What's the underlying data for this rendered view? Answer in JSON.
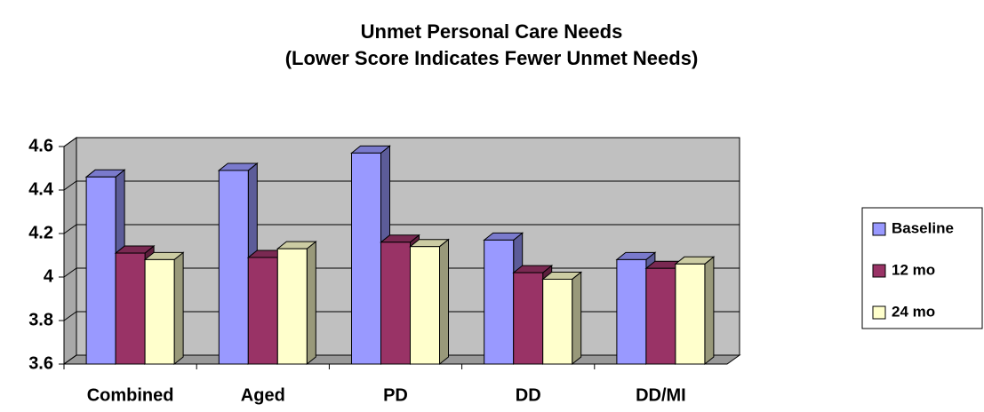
{
  "chart_data": {
    "type": "bar3d",
    "title": "Unmet Personal Care Needs",
    "subtitle": "(Lower Score Indicates Fewer Unmet Needs)",
    "categories": [
      "Combined",
      "Aged",
      "PD",
      "DD",
      "DD/MI"
    ],
    "series": [
      {
        "name": "Baseline",
        "color": "#9999ff",
        "values": [
          4.46,
          4.49,
          4.57,
          4.17,
          4.08
        ]
      },
      {
        "name": "12 mo",
        "color": "#993366",
        "values": [
          4.11,
          4.09,
          4.16,
          4.02,
          4.04
        ]
      },
      {
        "name": "24 mo",
        "color": "#ffffcc",
        "values": [
          4.08,
          4.13,
          4.14,
          3.99,
          4.06
        ]
      }
    ],
    "ylim": [
      3.6,
      4.6
    ],
    "yticks": [
      3.6,
      3.8,
      4,
      4.2,
      4.4,
      4.6
    ],
    "grid": true,
    "legend": "right"
  }
}
